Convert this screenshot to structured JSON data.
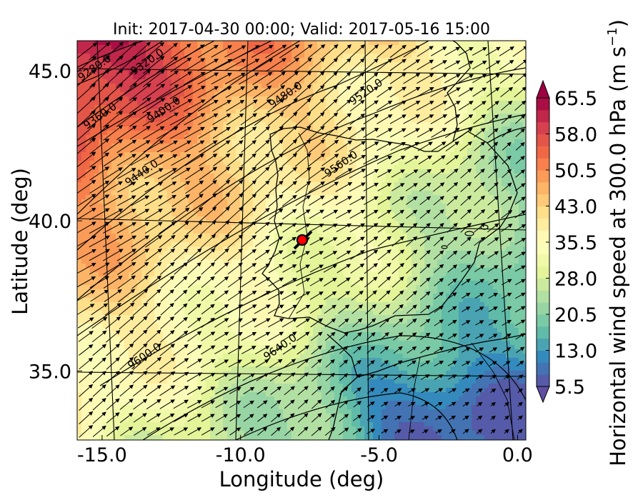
{
  "chart_data": {
    "type": "heatmap",
    "title": "Init: 2017-04-30 00:00; Valid: 2017-05-16 15:00",
    "xlabel": "Longitude (deg)",
    "ylabel": "Latitude (deg)",
    "xlim": [
      -15.9,
      0.3
    ],
    "ylim": [
      32.7,
      46.0
    ],
    "x_ticks": [
      -15.0,
      -10.0,
      -5.0,
      0.0
    ],
    "x_tick_labels": [
      "-15.0",
      "-10.0",
      "-5.0",
      "0.0"
    ],
    "y_ticks": [
      35.0,
      40.0,
      45.0
    ],
    "y_tick_labels": [
      "35.0",
      "40.0",
      "45.0"
    ],
    "colorbar": {
      "label": "Horizontal wind speed at 300.0 hPa (m s$^{-1}$)",
      "label_text": "Horizontal wind speed at 300.0 hPa (m s",
      "label_sup": "−1",
      "label_close": ")",
      "min": 5.5,
      "max": 65.5,
      "step": 2.5,
      "ticks": [
        5.5,
        13.0,
        20.5,
        28.0,
        35.5,
        43.0,
        50.5,
        58.0,
        65.5
      ],
      "tick_labels": [
        "5.5",
        "13.0",
        "20.5",
        "28.0",
        "35.5",
        "43.0",
        "50.5",
        "58.0",
        "65.5"
      ],
      "colormap": "Spectral_r",
      "extend": "both"
    },
    "contours": {
      "variable": "geopotential height (m)",
      "labels": [
        {
          "text": "9280.0",
          "lon": -15.2,
          "lat": 45.0
        },
        {
          "text": "9320.0",
          "lon": -13.3,
          "lat": 45.2
        },
        {
          "text": "9360.0",
          "lon": -15.0,
          "lat": 43.4
        },
        {
          "text": "9400.0",
          "lon": -12.7,
          "lat": 43.6
        },
        {
          "text": "9440.0",
          "lon": -13.5,
          "lat": 41.5
        },
        {
          "text": "9480.0",
          "lon": -8.3,
          "lat": 44.1
        },
        {
          "text": "9520.0",
          "lon": -5.4,
          "lat": 44.2
        },
        {
          "text": "9560.0",
          "lon": -6.3,
          "lat": 41.8
        },
        {
          "text": "9600.0",
          "lon": -13.4,
          "lat": 35.4
        },
        {
          "text": "9640.0",
          "lon": -8.5,
          "lat": 35.7
        }
      ]
    },
    "marker": {
      "lon": -7.7,
      "lat": 39.4,
      "color": "#ff0000"
    },
    "wind_field": "uniform arrows pointing to the northeast"
  }
}
